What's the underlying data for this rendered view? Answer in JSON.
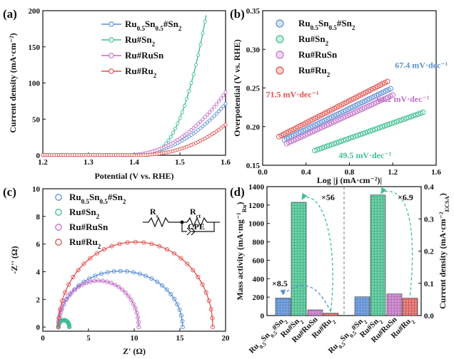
{
  "colors": {
    "RuSn_mix": "#5b8fd6",
    "RuSn2": "#3fbf90",
    "RuRuSn": "#c06fc6",
    "RuRu2": "#e2504e"
  },
  "series": [
    {
      "key": "RuSn_mix",
      "pre": "Ru",
      "sub1": "0.5",
      "mid": "Sn",
      "sub2": "0.5",
      "post": "#Sn",
      "sub3": "2"
    },
    {
      "key": "RuSn2",
      "pre": "Ru#Sn",
      "sub1": "2",
      "mid": "",
      "sub2": "",
      "post": "",
      "sub3": ""
    },
    {
      "key": "RuRuSn",
      "pre": "Ru#RuSn",
      "sub1": "",
      "mid": "",
      "sub2": "",
      "post": "",
      "sub3": ""
    },
    {
      "key": "RuRu2",
      "pre": "Ru#Ru",
      "sub1": "2",
      "mid": "",
      "sub2": "",
      "post": "",
      "sub3": ""
    }
  ],
  "chart_data": [
    {
      "panel": "(a)",
      "type": "line",
      "xlabel": "Potential (V vs. RHE)",
      "ylabel": "Current density (mA·cm⁻²)",
      "xlim": [
        1.2,
        1.6
      ],
      "ylim": [
        0,
        200
      ],
      "xticks": [
        1.2,
        1.3,
        1.4,
        1.5,
        1.6
      ],
      "yticks": [
        0,
        50,
        100,
        150,
        200
      ],
      "series": [
        {
          "key": "RuSn_mix",
          "onset": 1.37,
          "k": 2250,
          "p": 2.35
        },
        {
          "key": "RuSn2",
          "onset": 1.42,
          "k": 25000,
          "p": 2.45
        },
        {
          "key": "RuRuSn",
          "onset": 1.375,
          "k": 2500,
          "p": 2.25
        },
        {
          "key": "RuRu2",
          "onset": 1.395,
          "k": 1900,
          "p": 2.4
        }
      ]
    },
    {
      "panel": "(b)",
      "type": "scatter",
      "xlabel": "Log |j (mA·cm⁻²)|",
      "ylabel": "Overpotential (V vs. RHE)",
      "xlim": [
        0.0,
        1.6
      ],
      "ylim": [
        0.15,
        0.35
      ],
      "xticks": [
        0.0,
        0.4,
        0.8,
        1.2,
        1.6
      ],
      "yticks": [
        0.15,
        0.2,
        0.25,
        0.3,
        0.35
      ],
      "series": [
        {
          "key": "RuSn_mix",
          "x0": 0.2,
          "x1": 1.18,
          "y0": 0.183,
          "slope": 0.0674
        },
        {
          "key": "RuSn2",
          "x0": 0.48,
          "x1": 1.48,
          "y0": 0.169,
          "slope": 0.0495
        },
        {
          "key": "RuRuSn",
          "x0": 0.22,
          "x1": 1.2,
          "y0": 0.178,
          "slope": 0.0642
        },
        {
          "key": "RuRu2",
          "x0": 0.15,
          "x1": 1.15,
          "y0": 0.187,
          "slope": 0.0715
        }
      ],
      "annotations": [
        {
          "text": "67.4 mV·dec⁻¹",
          "key": "RuSn_mix",
          "x": 1.22,
          "y": 0.276
        },
        {
          "text": "71.5 mV·dec⁻¹",
          "key": "RuRu2",
          "x": 0.03,
          "y": 0.238
        },
        {
          "text": "64.2 mV·dec⁻¹",
          "key": "RuRuSn",
          "x": 1.05,
          "y": 0.232
        },
        {
          "text": "49.5 mV·dec⁻¹",
          "key": "RuSn2",
          "x": 0.7,
          "y": 0.159
        }
      ]
    },
    {
      "panel": "(c)",
      "type": "scatter",
      "xlabel": "Z' (Ω)",
      "ylabel": "-Z'' (Ω)",
      "xlim": [
        0,
        20
      ],
      "ylim": [
        -0.3,
        10
      ],
      "xticks": [
        0,
        5,
        10,
        15,
        20
      ],
      "yticks": [
        0,
        2,
        4,
        6,
        8,
        10
      ],
      "series": [
        {
          "key": "RuSn_mix",
          "r0": 1.7,
          "r1": 15.3,
          "h": 4.05
        },
        {
          "key": "RuSn2",
          "r0": 1.7,
          "r1": 2.9,
          "h": 0.5
        },
        {
          "key": "RuRuSn",
          "r0": 1.7,
          "r1": 10.5,
          "h": 3.35
        },
        {
          "key": "RuRu2",
          "r0": 1.7,
          "r1": 18.6,
          "h": 6.15
        }
      ],
      "circuit": {
        "rs": "R",
        "rs_sub": "s",
        "rct": "R",
        "rct_sub": "ct",
        "cpe": "CPE"
      }
    },
    {
      "panel": "(d)",
      "type": "bar",
      "ylabel_left": "Mass activity (mA·mg⁻¹",
      "ylabel_left_sub": "Ru",
      "ylabel_right": "Current density (mA·cm⁻²",
      "ylabel_right_sub": "ECSA",
      "ylim_left": [
        0,
        1400
      ],
      "ylim_right": [
        0,
        0.4
      ],
      "yticks_left": [
        0,
        200,
        400,
        600,
        800,
        1000,
        1200,
        1400
      ],
      "yticks_right": [
        0.0,
        0.1,
        0.2,
        0.3,
        0.4
      ],
      "mass_activity": [
        190,
        1230,
        62,
        25
      ],
      "current_density_ecsa": [
        0.058,
        0.374,
        0.067,
        0.054
      ],
      "annotations": {
        "left": "×8.5",
        "mid": "×56",
        "right": "×6.9"
      }
    }
  ]
}
